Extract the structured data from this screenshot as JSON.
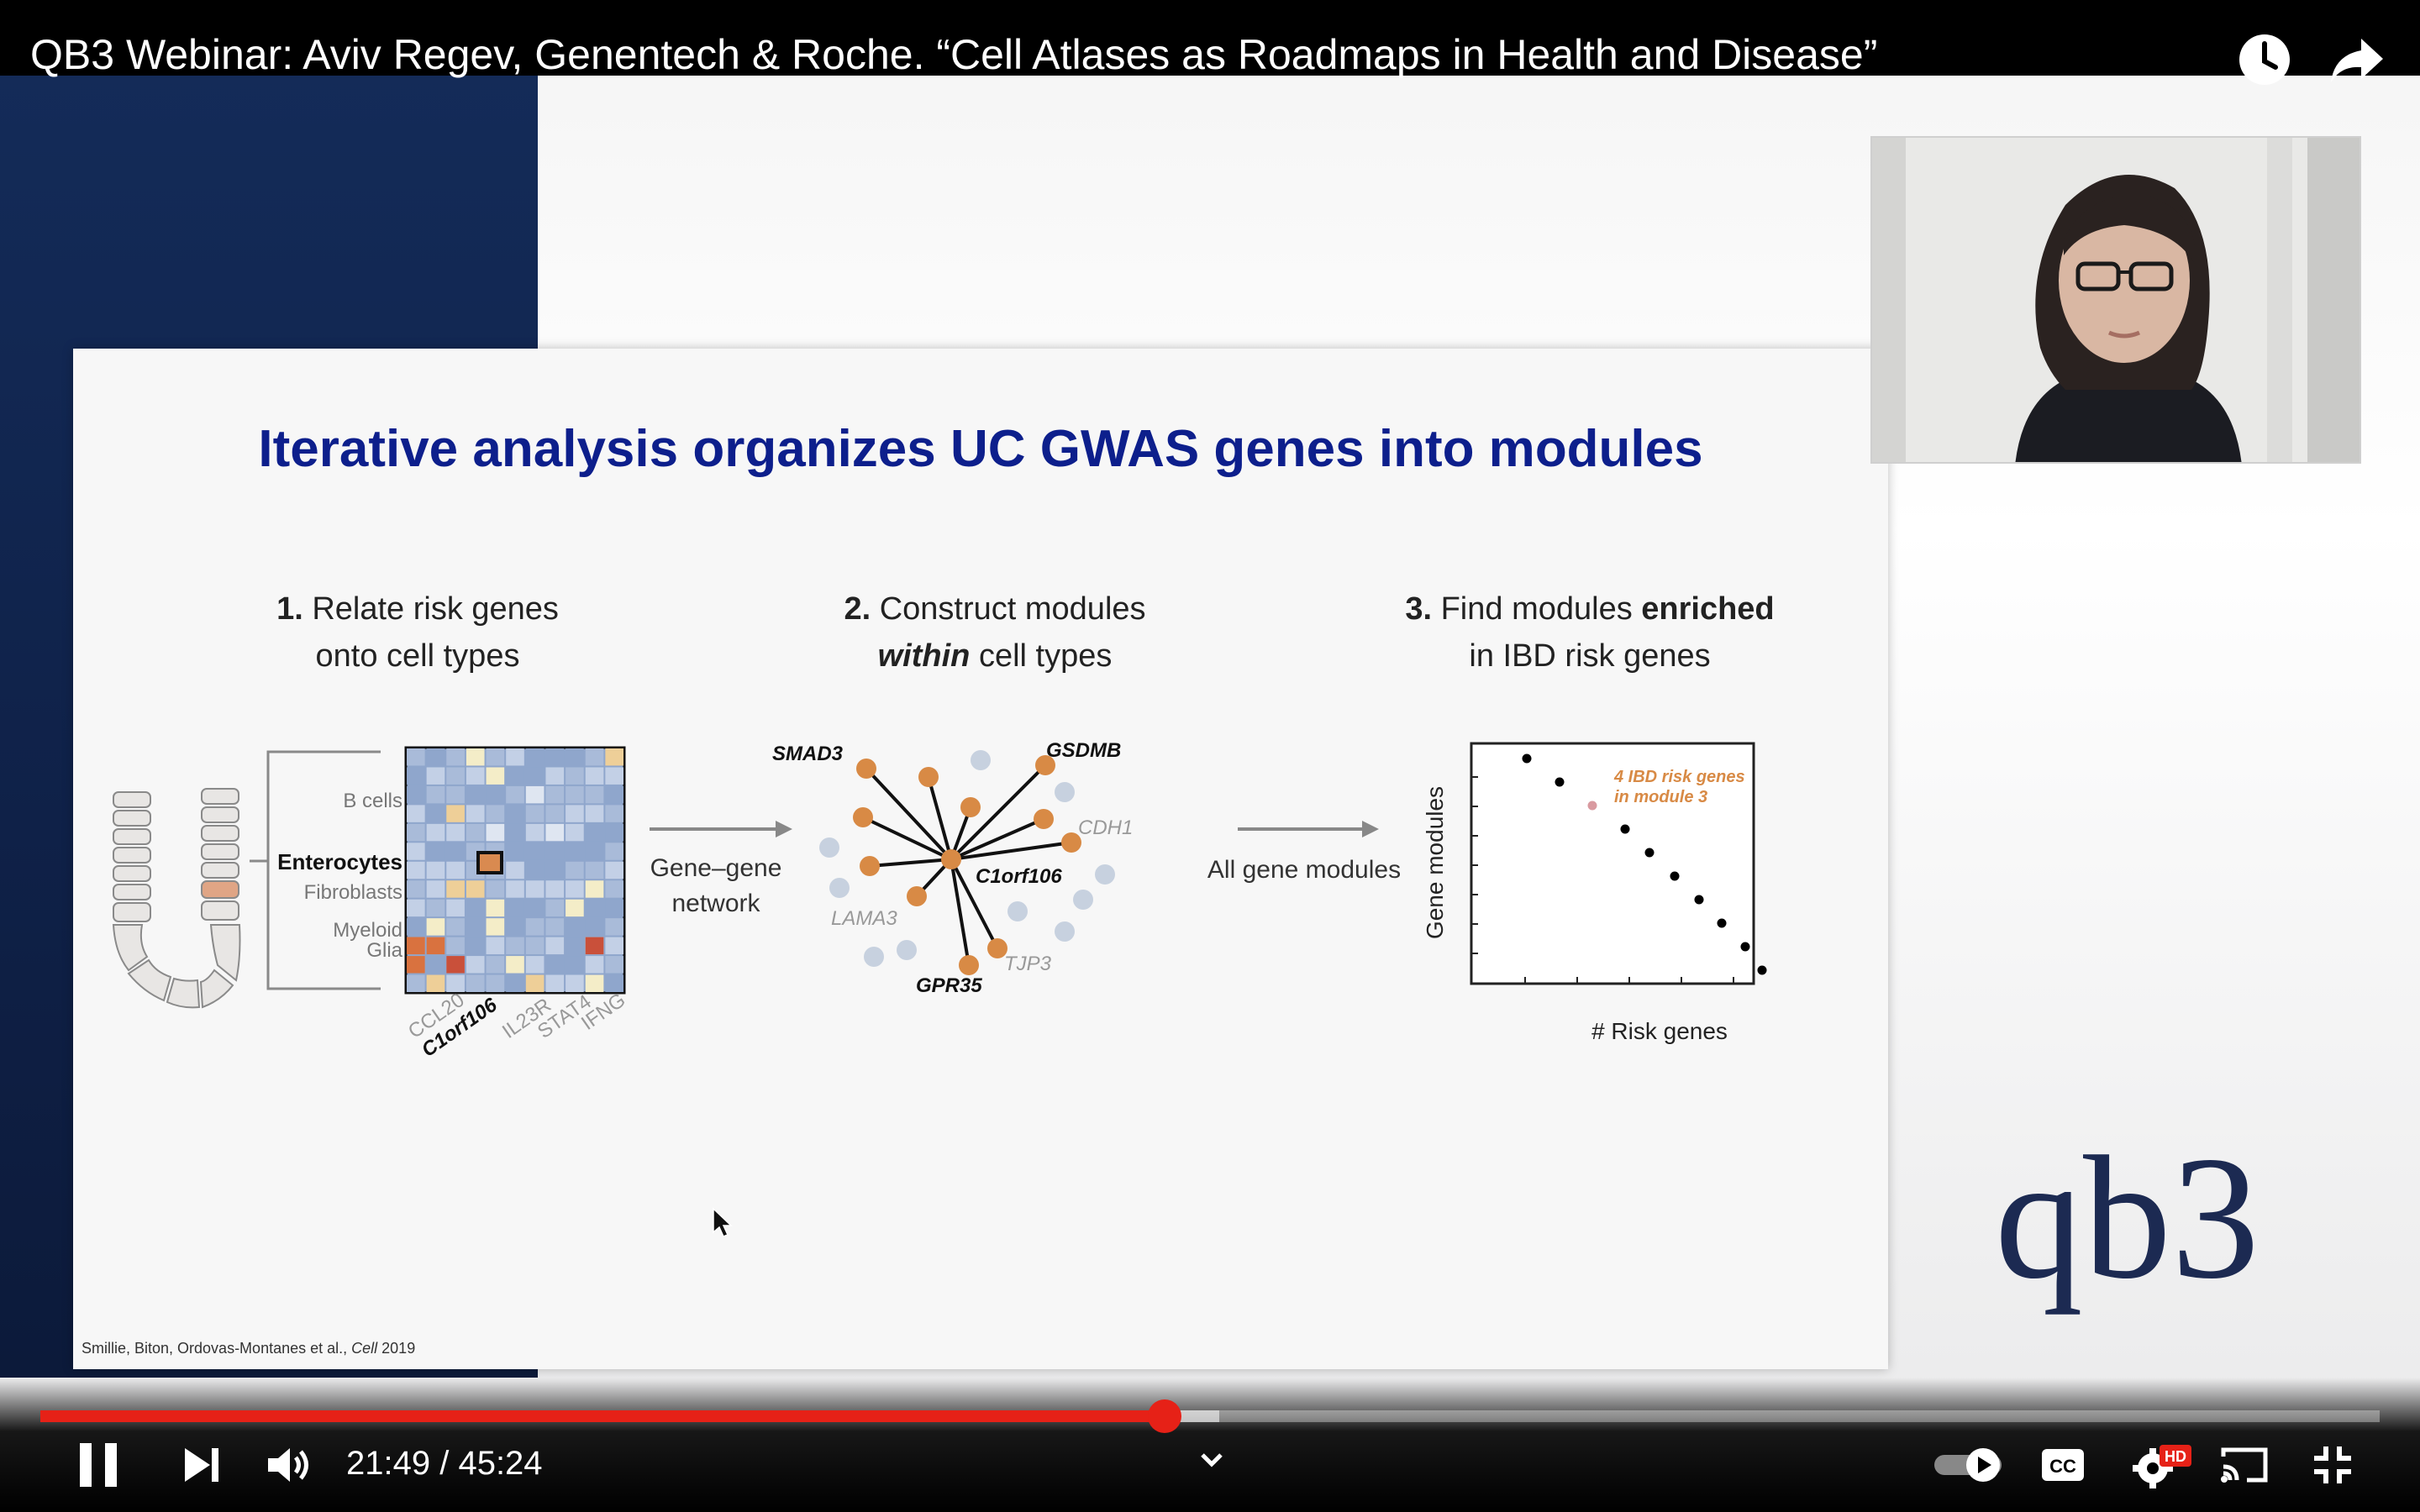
{
  "video": {
    "title": "QB3 Webinar: Aviv Regev, Genentech & Roche. “Cell Atlases as Roadmaps in Health and Disease”"
  },
  "slide": {
    "title": "Iterative analysis organizes UC GWAS genes into modules",
    "step1": {
      "num": "1.",
      "line1": "Relate risk genes",
      "line2": "onto cell types"
    },
    "step2": {
      "num": "2.",
      "line1": "Construct modules",
      "line2_em": "within",
      "line2_rest": " cell types"
    },
    "step3": {
      "num": "3.",
      "line1": "Find modules ",
      "line1_bold": "enriched",
      "line2": "in IBD risk genes"
    },
    "cell_labels": [
      "B cells",
      "Enterocytes",
      "Fibroblasts",
      "Myeloid",
      "Glia"
    ],
    "gene_labels": [
      "CCL20",
      "C1orf106",
      "IL23R",
      "STAT4",
      "IFNG"
    ],
    "arrow1_label": [
      "Gene–gene",
      "network"
    ],
    "network_labels": {
      "smad3": "SMAD3",
      "gsdmb": "GSDMB",
      "cdh1": "CDH1",
      "c1orf106": "C1orf106",
      "lama3": "LAMA3",
      "tjp3": "TJP3",
      "gpr35": "GPR35"
    },
    "arrow2_label": "All gene modules",
    "plot": {
      "ylabel": "Gene modules",
      "xlabel": "# Risk genes",
      "annotation": [
        "4 IBD risk genes",
        "in module 3"
      ]
    },
    "citation_authors": "Smillie, Biton, Ordovas-Montanes et al., ",
    "citation_journal": "Cell",
    "citation_year": " 2019"
  },
  "logo": {
    "text": "qb3"
  },
  "player": {
    "current_time": "21:49",
    "separator": " / ",
    "duration": "45:24",
    "progress_fraction": 0.4806,
    "buffered_fraction": 0.504
  },
  "colors": {
    "accent_red": "#e62117",
    "slide_title": "#0d1f8c",
    "node_orange": "#d88a45",
    "node_gray": "#c7d1df"
  },
  "icons": [
    "watch-later-icon",
    "share-icon",
    "pause-icon",
    "next-icon",
    "volume-icon",
    "chevron-down-icon",
    "autoplay-toggle",
    "cc-icon",
    "settings-icon",
    "cast-icon",
    "exit-fullscreen-icon",
    "cursor-icon"
  ]
}
